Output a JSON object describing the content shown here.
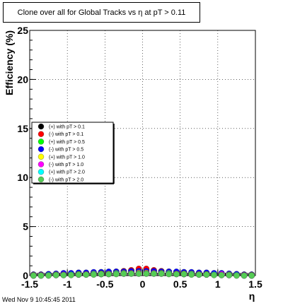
{
  "title": "Clone  over all for Global Tracks vs η at pT > 0.11",
  "timestamp": "Wed Nov  9 10:45:45 2011",
  "chart_data": {
    "type": "scatter",
    "title": "Clone  over all for Global Tracks vs η at pT > 0.11",
    "xlabel": "η",
    "ylabel": "Efficiency (%)",
    "xlim": [
      -1.5,
      1.5
    ],
    "ylim": [
      0,
      25
    ],
    "x_ticks": [
      "-1.5",
      "-1",
      "-0.5",
      "0",
      "0.5",
      "1",
      "1.5"
    ],
    "y_ticks": [
      "0",
      "5",
      "10",
      "15",
      "20",
      "25"
    ],
    "grid": true,
    "legend_position": "middle-left",
    "series": [
      {
        "name": "(+) with pT > 0.1",
        "color": "#000000",
        "x": [
          -1.45,
          -1.35,
          -1.25,
          -1.15,
          -1.05,
          -0.95,
          -0.85,
          -0.75,
          -0.65,
          -0.55,
          -0.45,
          -0.35,
          -0.25,
          -0.15,
          -0.05,
          0.05,
          0.15,
          0.25,
          0.35,
          0.45,
          0.55,
          0.65,
          0.75,
          0.85,
          0.95,
          1.05,
          1.15,
          1.25,
          1.35,
          1.45
        ],
        "y": [
          0.1,
          0.1,
          0.15,
          0.15,
          0.2,
          0.2,
          0.25,
          0.25,
          0.3,
          0.35,
          0.35,
          0.4,
          0.45,
          0.5,
          0.55,
          0.55,
          0.5,
          0.45,
          0.4,
          0.35,
          0.35,
          0.3,
          0.25,
          0.25,
          0.2,
          0.2,
          0.15,
          0.15,
          0.1,
          0.1
        ]
      },
      {
        "name": "(-) with pT > 0.1",
        "color": "#ff0000",
        "x": [
          -1.45,
          -1.35,
          -1.25,
          -1.15,
          -1.05,
          -0.95,
          -0.85,
          -0.75,
          -0.65,
          -0.55,
          -0.45,
          -0.35,
          -0.25,
          -0.15,
          -0.05,
          0.05,
          0.15,
          0.25,
          0.35,
          0.45,
          0.55,
          0.65,
          0.75,
          0.85,
          0.95,
          1.05,
          1.15,
          1.25,
          1.35,
          1.45
        ],
        "y": [
          0.1,
          0.1,
          0.1,
          0.15,
          0.15,
          0.2,
          0.2,
          0.25,
          0.3,
          0.3,
          0.35,
          0.4,
          0.45,
          0.55,
          0.7,
          0.7,
          0.55,
          0.45,
          0.4,
          0.35,
          0.3,
          0.3,
          0.25,
          0.2,
          0.2,
          0.15,
          0.15,
          0.1,
          0.1,
          0.1
        ]
      },
      {
        "name": "(+) with pT > 0.5",
        "color": "#00ff00",
        "x": [
          -1.45,
          -1.35,
          -1.25,
          -1.15,
          -1.05,
          -0.95,
          -0.85,
          -0.75,
          -0.65,
          -0.55,
          -0.45,
          -0.35,
          -0.25,
          -0.15,
          -0.05,
          0.05,
          0.15,
          0.25,
          0.35,
          0.45,
          0.55,
          0.65,
          0.75,
          0.85,
          0.95,
          1.05,
          1.15,
          1.25,
          1.35,
          1.45
        ],
        "y": [
          0.05,
          0.05,
          0.1,
          0.1,
          0.1,
          0.15,
          0.15,
          0.2,
          0.2,
          0.25,
          0.25,
          0.3,
          0.3,
          0.35,
          0.35,
          0.35,
          0.35,
          0.3,
          0.3,
          0.25,
          0.25,
          0.2,
          0.2,
          0.15,
          0.15,
          0.1,
          0.1,
          0.1,
          0.05,
          0.05
        ]
      },
      {
        "name": "(-) with pT > 0.5",
        "color": "#0000ff",
        "x": [
          -1.45,
          -1.35,
          -1.25,
          -1.15,
          -1.05,
          -0.95,
          -0.85,
          -0.75,
          -0.65,
          -0.55,
          -0.45,
          -0.35,
          -0.25,
          -0.15,
          -0.05,
          0.05,
          0.15,
          0.25,
          0.35,
          0.45,
          0.55,
          0.65,
          0.75,
          0.85,
          0.95,
          1.05,
          1.15,
          1.25,
          1.35,
          1.45
        ],
        "y": [
          0.1,
          0.1,
          0.15,
          0.2,
          0.25,
          0.25,
          0.3,
          0.3,
          0.35,
          0.35,
          0.4,
          0.4,
          0.4,
          0.45,
          0.45,
          0.45,
          0.45,
          0.4,
          0.4,
          0.4,
          0.35,
          0.35,
          0.3,
          0.3,
          0.25,
          0.25,
          0.2,
          0.15,
          0.1,
          0.1
        ]
      },
      {
        "name": "(+) with pT > 1.0",
        "color": "#ffff00",
        "x": [
          -1.45,
          -1.35,
          -1.25,
          -1.15,
          -1.05,
          -0.95,
          -0.85,
          -0.75,
          -0.65,
          -0.55,
          -0.45,
          -0.35,
          -0.25,
          -0.15,
          -0.05,
          0.05,
          0.15,
          0.25,
          0.35,
          0.45,
          0.55,
          0.65,
          0.75,
          0.85,
          0.95,
          1.05,
          1.15,
          1.25,
          1.35,
          1.45
        ],
        "y": [
          0.05,
          0.05,
          0.05,
          0.1,
          0.1,
          0.1,
          0.15,
          0.15,
          0.2,
          0.2,
          0.2,
          0.25,
          0.25,
          0.25,
          0.3,
          0.3,
          0.25,
          0.25,
          0.25,
          0.2,
          0.2,
          0.2,
          0.15,
          0.15,
          0.1,
          0.1,
          0.1,
          0.05,
          0.05,
          0.05
        ]
      },
      {
        "name": "(-) with pT > 1.0",
        "color": "#ff00ff",
        "x": [
          -1.45,
          -1.35,
          -1.25,
          -1.15,
          -1.05,
          -0.95,
          -0.85,
          -0.75,
          -0.65,
          -0.55,
          -0.45,
          -0.35,
          -0.25,
          -0.15,
          -0.05,
          0.05,
          0.15,
          0.25,
          0.35,
          0.45,
          0.55,
          0.65,
          0.75,
          0.85,
          0.95,
          1.05,
          1.15,
          1.25,
          1.35,
          1.45
        ],
        "y": [
          0.0,
          0.05,
          0.05,
          0.05,
          0.1,
          0.1,
          0.1,
          0.15,
          0.15,
          0.15,
          0.2,
          0.2,
          0.2,
          0.25,
          0.25,
          0.25,
          0.25,
          0.2,
          0.2,
          0.2,
          0.15,
          0.15,
          0.15,
          0.1,
          0.1,
          0.15,
          0.05,
          0.05,
          0.05,
          0.0
        ]
      },
      {
        "name": "(+) with pT > 2.0",
        "color": "#00ffff",
        "x": [
          -1.45,
          -1.35,
          -1.25,
          -1.15,
          -1.05,
          -0.95,
          -0.85,
          -0.75,
          -0.65,
          -0.55,
          -0.45,
          -0.35,
          -0.25,
          -0.15,
          -0.05,
          0.05,
          0.15,
          0.25,
          0.35,
          0.45,
          0.55,
          0.65,
          0.75,
          0.85,
          0.95,
          1.05,
          1.15,
          1.25,
          1.35,
          1.45
        ],
        "y": [
          0.0,
          0.0,
          0.05,
          0.05,
          0.05,
          0.1,
          0.1,
          0.1,
          0.15,
          0.15,
          0.15,
          0.2,
          0.2,
          0.2,
          0.2,
          0.2,
          0.2,
          0.2,
          0.2,
          0.15,
          0.15,
          0.15,
          0.1,
          0.1,
          0.1,
          0.05,
          0.05,
          0.05,
          0.0,
          0.0
        ]
      },
      {
        "name": "(-) with pT > 2.0",
        "color": "#55cc55",
        "x": [
          -1.45,
          -1.35,
          -1.25,
          -1.15,
          -1.05,
          -0.95,
          -0.85,
          -0.75,
          -0.65,
          -0.55,
          -0.45,
          -0.35,
          -0.25,
          -0.15,
          -0.05,
          0.05,
          0.15,
          0.25,
          0.35,
          0.45,
          0.55,
          0.65,
          0.75,
          0.85,
          0.95,
          1.05,
          1.15,
          1.25,
          1.35,
          1.45
        ],
        "y": [
          0.0,
          0.0,
          0.0,
          0.05,
          0.05,
          0.05,
          0.1,
          0.1,
          0.1,
          0.15,
          0.15,
          0.15,
          0.2,
          0.2,
          0.2,
          0.2,
          0.2,
          0.2,
          0.15,
          0.15,
          0.15,
          0.1,
          0.1,
          0.1,
          0.05,
          0.05,
          0.05,
          0.0,
          0.0,
          0.0
        ]
      }
    ]
  }
}
